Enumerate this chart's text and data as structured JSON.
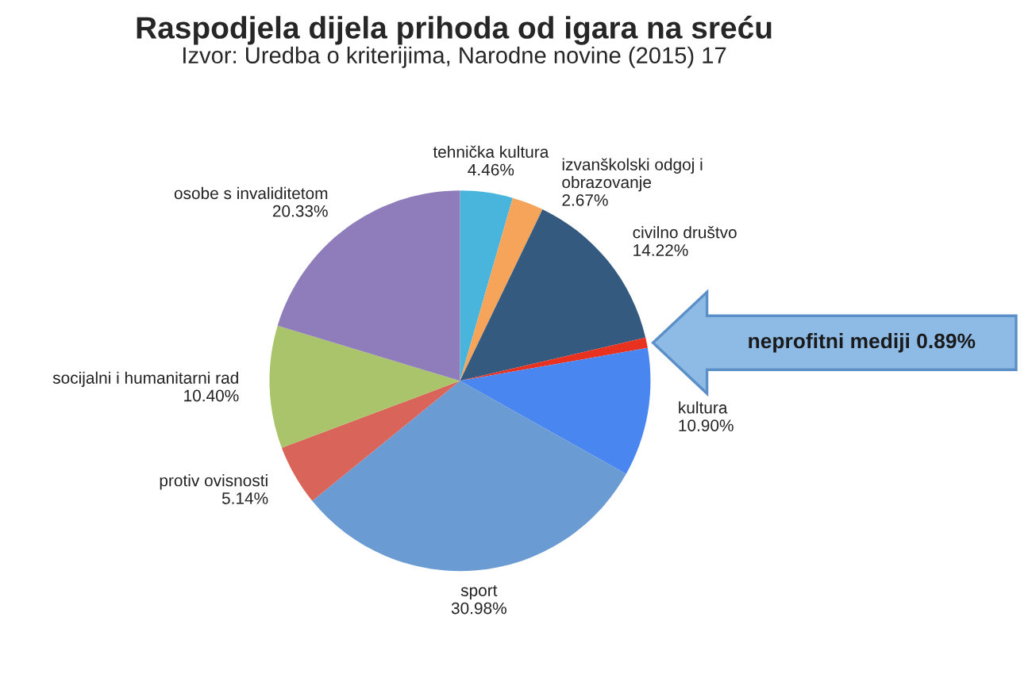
{
  "chart_data": {
    "type": "pie",
    "title": "Raspodjela dijela prihoda od igara na sreću",
    "subtitle": "Izvor: Uredba o kriterijima, Narodne novine (2015) 17",
    "categories": [
      "tehnička kultura",
      "izvanškolski odgoj i\nobrazovanje",
      "civilno društvo",
      null,
      "kultura",
      "sport",
      "protiv ovisnosti",
      "socijalni i humanitarni rad",
      "osobe s invaliditetom"
    ],
    "values": [
      4.46,
      2.67,
      14.22,
      0.89,
      10.9,
      30.98,
      5.14,
      10.4,
      20.33
    ],
    "value_labels": [
      "4.46%",
      "2.67%",
      "14.22%",
      null,
      "10.90%",
      "30.98%",
      "5.14%",
      "10.40%",
      "20.33%"
    ],
    "colors": [
      "#4ab5dc",
      "#f6a45a",
      "#345a80",
      "#e8321f",
      "#4a86f0",
      "#6a9bd2",
      "#d9645a",
      "#a9c46a",
      "#8e7cbb"
    ],
    "annotations": [
      "neprofitni mediji 0.89%"
    ]
  }
}
